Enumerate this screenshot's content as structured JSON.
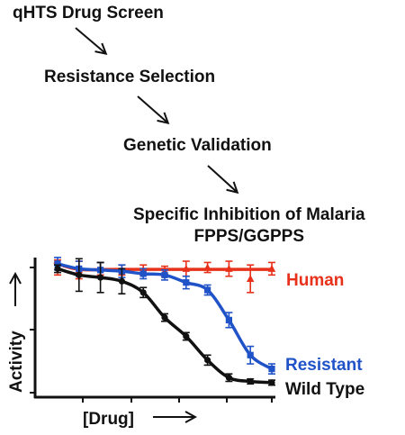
{
  "workflow": {
    "step1": "qHTS Drug Screen",
    "step2": "Resistance Selection",
    "step3": "Genetic Validation",
    "step4_line1": "Specific Inhibition of Malaria",
    "step4_line2": "FPPS/GGPPS"
  },
  "chart_data": {
    "type": "line",
    "xlabel": "[Drug]",
    "ylabel": "Activity",
    "ylim": [
      0,
      110
    ],
    "xlim": [
      0,
      11
    ],
    "series": [
      {
        "name": "Human",
        "color": "#e8311a",
        "marker": "triangle",
        "x": [
          0,
          1,
          2,
          3,
          4,
          5,
          6,
          7,
          8,
          9,
          10
        ],
        "y": [
          100,
          98,
          99,
          98,
          98,
          97,
          99,
          100,
          99,
          91,
          99
        ],
        "err": [
          6,
          7,
          5,
          4,
          4,
          4,
          6,
          4,
          6,
          11,
          5
        ]
      },
      {
        "name": "Resistant",
        "color": "#2153c8",
        "marker": "square",
        "x": [
          0,
          1,
          2,
          3,
          4,
          5,
          6,
          7,
          8,
          9,
          10
        ],
        "y": [
          103,
          99,
          98,
          97,
          95,
          94,
          88,
          82,
          58,
          30,
          19
        ],
        "err": [
          5,
          6,
          6,
          5,
          4,
          4,
          5,
          4,
          6,
          7,
          4
        ]
      },
      {
        "name": "Wild Type",
        "color": "#111111",
        "marker": "circle",
        "x": [
          0,
          1,
          2,
          3,
          4,
          5,
          6,
          7,
          8,
          9,
          10
        ],
        "y": [
          99,
          94,
          92,
          89,
          80,
          60,
          45,
          26,
          12,
          9,
          8
        ],
        "err": [
          3,
          13,
          12,
          10,
          4,
          3,
          3,
          4,
          3,
          2,
          2
        ]
      }
    ]
  }
}
